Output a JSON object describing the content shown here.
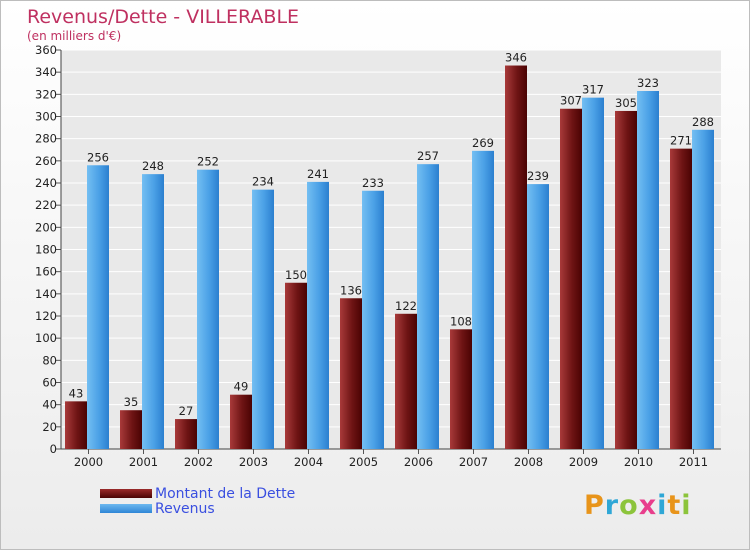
{
  "header": {
    "title": "Revenus/Dette - VILLERABLE",
    "subtitle": "(en milliers d'€)"
  },
  "legend": {
    "items": [
      {
        "label": "Montant de la Dette",
        "color": "#6b0b0b"
      },
      {
        "label": "Revenus",
        "color": "#3f9ae2"
      }
    ]
  },
  "logo": {
    "text": "Proxiti",
    "colors": [
      "#e8941a",
      "#2fa7d6",
      "#8cc43b",
      "#e83e8c",
      "#2fa7d6",
      "#e8941a",
      "#8cc43b"
    ]
  },
  "chart_data": {
    "type": "bar",
    "title": "Revenus/Dette - VILLERABLE",
    "ylabel": "(en milliers d'€)",
    "xlabel": "",
    "categories": [
      "2000",
      "2001",
      "2002",
      "2003",
      "2004",
      "2005",
      "2006",
      "2007",
      "2008",
      "2009",
      "2010",
      "2011"
    ],
    "series": [
      {
        "name": "Montant de la Dette",
        "color": "#7a1a1a",
        "values": [
          43,
          35,
          27,
          49,
          150,
          136,
          122,
          108,
          346,
          307,
          305,
          271
        ]
      },
      {
        "name": "Revenus",
        "color": "#3f9ae2",
        "values": [
          256,
          248,
          252,
          234,
          241,
          233,
          257,
          269,
          239,
          317,
          323,
          288
        ]
      }
    ],
    "ylim": [
      0,
      360
    ],
    "yticks": [
      0,
      20,
      40,
      60,
      80,
      100,
      120,
      140,
      160,
      180,
      200,
      220,
      240,
      260,
      280,
      300,
      320,
      340,
      360
    ],
    "grid": true,
    "legend": "bottom-left"
  }
}
